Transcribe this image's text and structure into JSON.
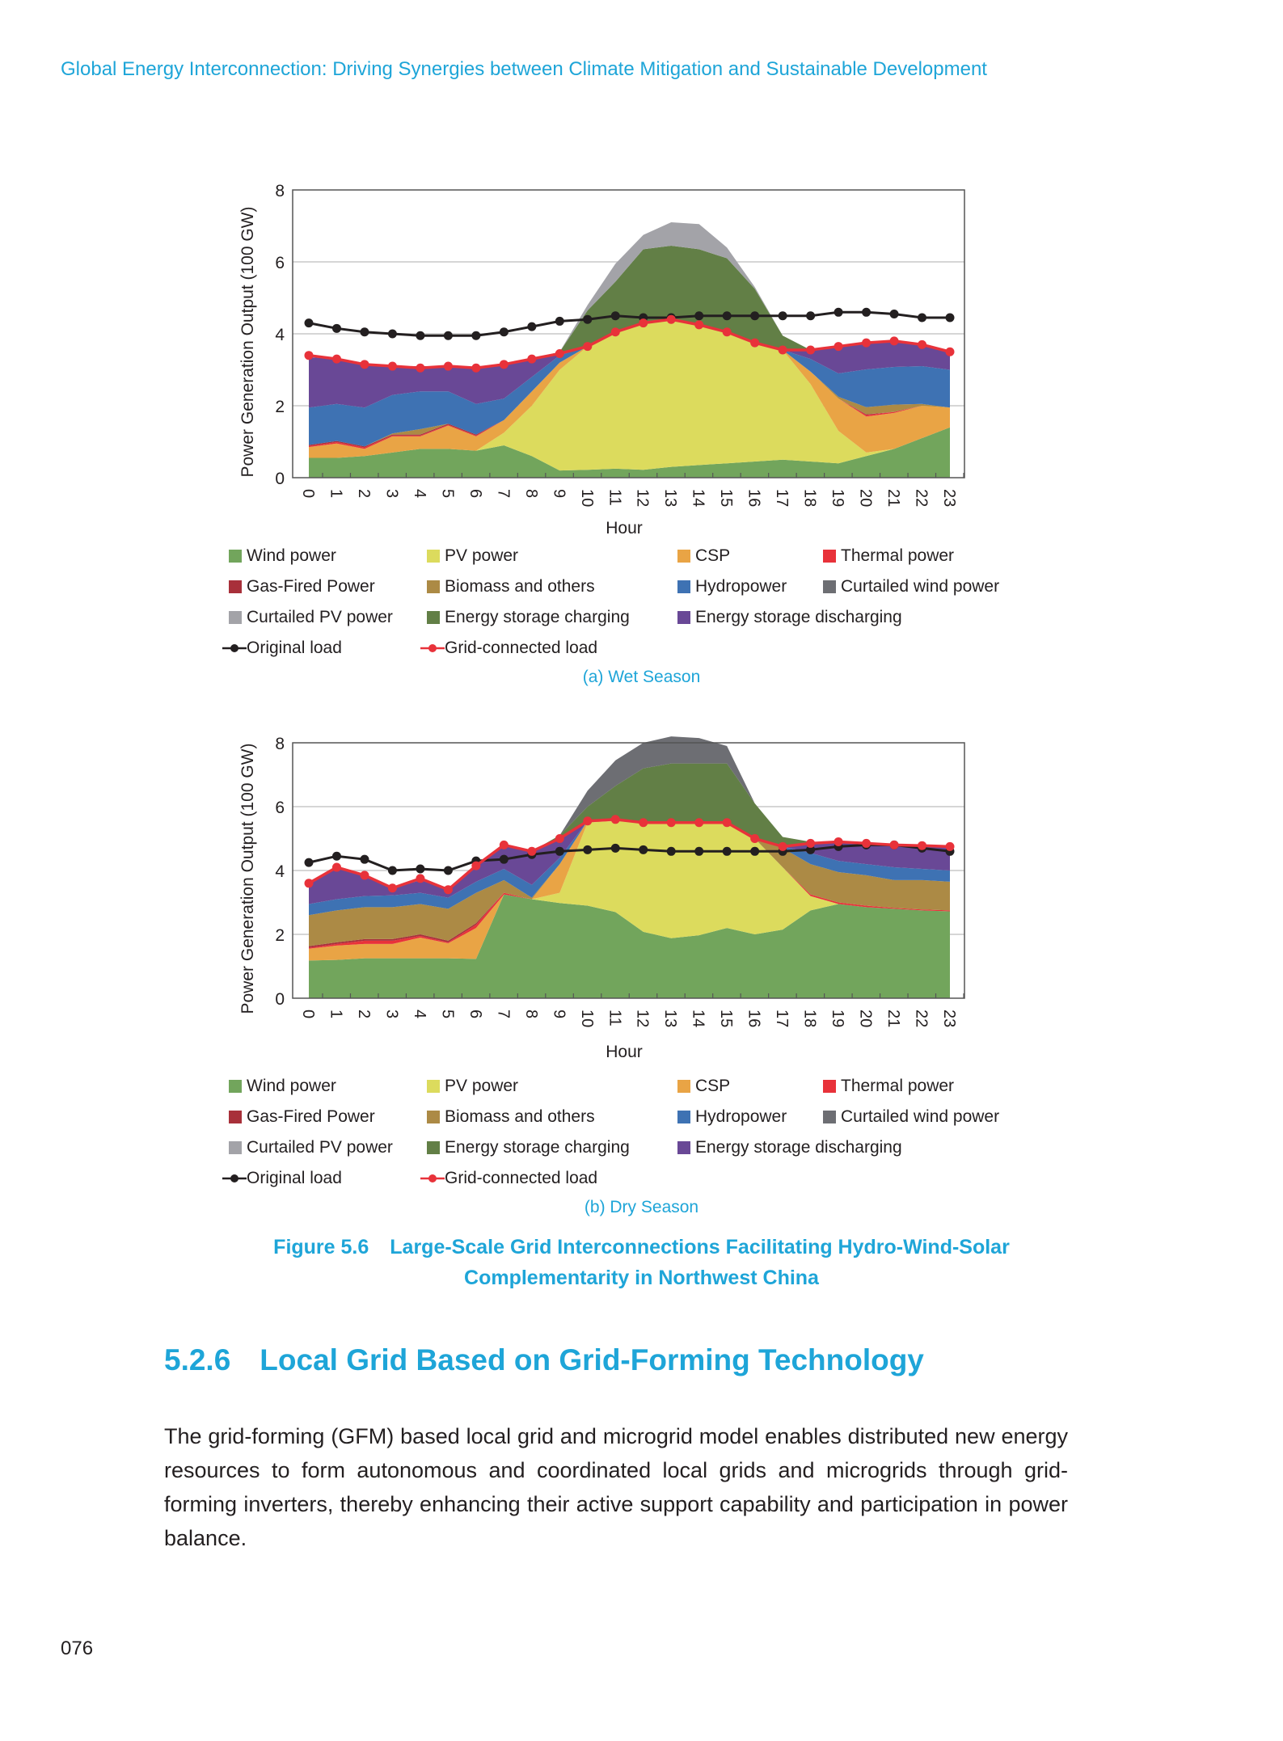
{
  "running_header": "Global Energy Interconnection: Driving Synergies between Climate Mitigation and Sustainable Development",
  "legend": [
    {
      "label": "Wind power",
      "color": "#72a55c",
      "kind": "area"
    },
    {
      "label": "PV power",
      "color": "#dcdb5d",
      "kind": "area"
    },
    {
      "label": "CSP",
      "color": "#e9a445",
      "kind": "area"
    },
    {
      "label": "Thermal power",
      "color": "#e8323a",
      "kind": "area"
    },
    {
      "label": "Gas-Fired Power",
      "color": "#a8303a",
      "kind": "area"
    },
    {
      "label": "Biomass and others",
      "color": "#ac8a45",
      "kind": "area"
    },
    {
      "label": "Hydropower",
      "color": "#3e72b3",
      "kind": "area"
    },
    {
      "label": "Curtailed wind power",
      "color": "#6d6e73",
      "kind": "area"
    },
    {
      "label": "Curtailed PV power",
      "color": "#a3a3a8",
      "kind": "area"
    },
    {
      "label": "Energy storage charging",
      "color": "#627f46",
      "kind": "area"
    },
    {
      "label": "Energy storage discharging",
      "color": "#694896",
      "kind": "area"
    },
    {
      "label": "Original load",
      "color": "#231f20",
      "kind": "line"
    },
    {
      "label": "Grid-connected load",
      "color": "#e8323a",
      "kind": "line"
    }
  ],
  "chart_data": [
    {
      "type": "area",
      "title": "(a) Wet Season",
      "xlabel": "Hour",
      "ylabel": "Power Generation Output (100 GW)",
      "x": [
        0,
        1,
        2,
        3,
        4,
        5,
        6,
        7,
        8,
        9,
        10,
        11,
        12,
        13,
        14,
        15,
        16,
        17,
        18,
        19,
        20,
        21,
        22,
        23
      ],
      "ylim": [
        0,
        8
      ],
      "yticks": [
        0,
        2,
        4,
        6,
        8
      ],
      "grid": true,
      "legend_position": "bottom",
      "stacked_series": [
        {
          "name": "Wind power",
          "values": [
            0.55,
            0.55,
            0.6,
            0.7,
            0.8,
            0.8,
            0.75,
            0.9,
            0.6,
            0.2,
            0.22,
            0.25,
            0.22,
            0.3,
            0.35,
            0.4,
            0.45,
            0.5,
            0.45,
            0.4,
            0.6,
            0.8,
            1.1,
            1.4
          ]
        },
        {
          "name": "PV power",
          "values": [
            0,
            0,
            0,
            0,
            0,
            0,
            0,
            0.35,
            1.4,
            2.8,
            3.43,
            3.8,
            4.08,
            4.1,
            3.9,
            3.65,
            3.3,
            3.05,
            2.15,
            0.9,
            0.1,
            0,
            0,
            0
          ]
        },
        {
          "name": "CSP",
          "values": [
            0.3,
            0.4,
            0.2,
            0.45,
            0.35,
            0.65,
            0.4,
            0.35,
            0.4,
            0.2,
            0,
            0,
            0,
            0,
            0,
            0,
            0,
            0,
            0.35,
            0.9,
            1.0,
            1.0,
            0.9,
            0.55
          ]
        },
        {
          "name": "Thermal power",
          "values": [
            0.03,
            0.04,
            0.04,
            0.02,
            0.02,
            0.02,
            0.02,
            0,
            0,
            0,
            0,
            0,
            0,
            0,
            0,
            0,
            0,
            0,
            0,
            0,
            0.04,
            0.03,
            0,
            0
          ]
        },
        {
          "name": "Gas-Fired Power",
          "values": [
            0.03,
            0.03,
            0.03,
            0.03,
            0.03,
            0.03,
            0.03,
            0,
            0,
            0,
            0,
            0,
            0,
            0,
            0,
            0,
            0,
            0,
            0,
            0,
            0.02,
            0,
            0,
            0
          ]
        },
        {
          "name": "Biomass and others",
          "values": [
            0,
            0,
            0,
            0.03,
            0.15,
            0,
            0,
            0,
            0,
            0,
            0,
            0,
            0,
            0,
            0,
            0,
            0,
            0,
            0,
            0.05,
            0.2,
            0.2,
            0.05,
            0
          ]
        },
        {
          "name": "Hydropower",
          "values": [
            1.04,
            1.03,
            1.08,
            1.07,
            1.05,
            0.9,
            0.85,
            0.6,
            0.4,
            0.2,
            0,
            0,
            0,
            0,
            0,
            0,
            0,
            0,
            0.35,
            0.65,
            1.05,
            1.05,
            1.05,
            1.05
          ]
        },
        {
          "name": "Energy storage discharging",
          "values": [
            1.4,
            1.25,
            1.2,
            0.8,
            0.7,
            0.7,
            1.0,
            0.95,
            0.5,
            0.05,
            0,
            0,
            0,
            0,
            0,
            0,
            0,
            0,
            0.25,
            0.75,
            0.75,
            0.72,
            0.6,
            0.5
          ]
        },
        {
          "name": "Energy storage charging",
          "values": [
            0,
            0,
            0,
            0,
            0,
            0,
            0,
            0,
            0,
            0.05,
            1.0,
            1.4,
            2.05,
            2.05,
            2.1,
            2.05,
            1.5,
            0.4,
            0,
            0,
            0,
            0,
            0,
            0
          ]
        },
        {
          "name": "Curtailed wind power",
          "values": [
            0,
            0,
            0,
            0,
            0,
            0,
            0,
            0,
            0,
            0,
            0,
            0,
            0,
            0,
            0,
            0,
            0,
            0,
            0,
            0,
            0,
            0,
            0,
            0
          ]
        },
        {
          "name": "Curtailed PV power",
          "values": [
            0,
            0,
            0,
            0,
            0,
            0,
            0,
            0,
            0,
            0,
            0.15,
            0.5,
            0.4,
            0.65,
            0.7,
            0.3,
            0.05,
            0,
            0,
            0,
            0,
            0,
            0,
            0
          ]
        }
      ],
      "line_series": [
        {
          "name": "Original load",
          "values": [
            4.3,
            4.15,
            4.05,
            4.0,
            3.95,
            3.95,
            3.95,
            4.05,
            4.2,
            4.35,
            4.4,
            4.5,
            4.45,
            4.45,
            4.5,
            4.5,
            4.5,
            4.5,
            4.5,
            4.6,
            4.6,
            4.55,
            4.45,
            4.45
          ]
        },
        {
          "name": "Grid-connected load",
          "values": [
            3.4,
            3.3,
            3.15,
            3.1,
            3.05,
            3.1,
            3.05,
            3.15,
            3.3,
            3.45,
            3.65,
            4.05,
            4.3,
            4.4,
            4.25,
            4.05,
            3.75,
            3.55,
            3.55,
            3.65,
            3.75,
            3.8,
            3.7,
            3.5
          ]
        }
      ]
    },
    {
      "type": "area",
      "title": "(b) Dry Season",
      "xlabel": "Hour",
      "ylabel": "Power Generation Output (100 GW)",
      "x": [
        0,
        1,
        2,
        3,
        4,
        5,
        6,
        7,
        8,
        9,
        10,
        11,
        12,
        13,
        14,
        15,
        16,
        17,
        18,
        19,
        20,
        21,
        22,
        23
      ],
      "ylim": [
        0,
        8
      ],
      "yticks": [
        0,
        2,
        4,
        6,
        8
      ],
      "grid": true,
      "legend_position": "bottom",
      "stacked_series": [
        {
          "name": "Wind power",
          "values": [
            1.18,
            1.2,
            1.25,
            1.25,
            1.25,
            1.25,
            1.23,
            3.25,
            3.1,
            2.98,
            2.9,
            2.7,
            2.08,
            1.88,
            1.97,
            2.2,
            2.0,
            2.15,
            2.75,
            2.95,
            2.85,
            2.8,
            2.75,
            2.72
          ]
        },
        {
          "name": "PV power",
          "values": [
            0,
            0,
            0,
            0,
            0,
            0,
            0,
            0,
            0,
            0.32,
            2.6,
            2.85,
            3.42,
            3.62,
            3.53,
            3.3,
            3.0,
            1.95,
            0.45,
            0,
            0,
            0,
            0,
            0
          ]
        },
        {
          "name": "CSP",
          "values": [
            0.37,
            0.45,
            0.45,
            0.45,
            0.65,
            0.47,
            0.97,
            0,
            0,
            0.9,
            0.05,
            0,
            0,
            0,
            0,
            0,
            0,
            0,
            0,
            0,
            0,
            0,
            0,
            0
          ]
        },
        {
          "name": "Thermal power",
          "values": [
            0.03,
            0.05,
            0.1,
            0.1,
            0.05,
            0.03,
            0.1,
            0.05,
            0,
            0,
            0,
            0,
            0,
            0,
            0,
            0,
            0,
            0,
            0.05,
            0.05,
            0.05,
            0.03,
            0.03,
            0.03
          ]
        },
        {
          "name": "Gas-Fired Power",
          "values": [
            0.05,
            0.05,
            0.05,
            0.05,
            0.05,
            0.05,
            0.05,
            0,
            0,
            0,
            0,
            0,
            0,
            0,
            0,
            0,
            0,
            0,
            0,
            0,
            0,
            0,
            0,
            0
          ]
        },
        {
          "name": "Biomass and others",
          "values": [
            0.97,
            1.0,
            1.0,
            1.0,
            0.95,
            1.0,
            0.95,
            0.4,
            0.05,
            0,
            0,
            0,
            0,
            0,
            0,
            0,
            0,
            0.6,
            0.95,
            0.95,
            0.95,
            0.87,
            0.92,
            0.9
          ]
        },
        {
          "name": "Hydropower",
          "values": [
            0.35,
            0.35,
            0.35,
            0.37,
            0.35,
            0.35,
            0.35,
            0.35,
            0.4,
            0.2,
            0,
            0,
            0,
            0,
            0,
            0,
            0,
            0.05,
            0.35,
            0.35,
            0.35,
            0.4,
            0.35,
            0.35
          ]
        },
        {
          "name": "Energy storage discharging",
          "values": [
            0.65,
            1.0,
            0.65,
            0.2,
            0.4,
            0.25,
            0.5,
            0.75,
            1.05,
            0.6,
            0,
            0,
            0,
            0,
            0,
            0,
            0,
            0,
            0.35,
            0.6,
            0.65,
            0.7,
            0.73,
            0.75
          ]
        },
        {
          "name": "Energy storage charging",
          "values": [
            0,
            0,
            0,
            0,
            0,
            0,
            0,
            0,
            0,
            0.1,
            0.45,
            1.1,
            1.7,
            1.85,
            1.85,
            1.85,
            1.1,
            0.3,
            0,
            0,
            0,
            0,
            0,
            0
          ]
        },
        {
          "name": "Curtailed wind power",
          "values": [
            0,
            0,
            0,
            0,
            0,
            0,
            0,
            0,
            0,
            0,
            0.5,
            0.8,
            0.8,
            0.85,
            0.8,
            0.55,
            0,
            0,
            0,
            0,
            0,
            0,
            0,
            0
          ]
        },
        {
          "name": "Curtailed PV power",
          "values": [
            0,
            0,
            0,
            0,
            0,
            0,
            0,
            0,
            0,
            0,
            0,
            0,
            0,
            0,
            0,
            0,
            0,
            0,
            0,
            0,
            0,
            0,
            0,
            0
          ]
        }
      ],
      "line_series": [
        {
          "name": "Original load",
          "values": [
            4.25,
            4.45,
            4.35,
            4.0,
            4.05,
            4.0,
            4.3,
            4.35,
            4.5,
            4.6,
            4.65,
            4.7,
            4.65,
            4.6,
            4.6,
            4.6,
            4.6,
            4.6,
            4.65,
            4.75,
            4.8,
            4.8,
            4.7,
            4.6
          ]
        },
        {
          "name": "Grid-connected load",
          "values": [
            3.6,
            4.1,
            3.85,
            3.45,
            3.75,
            3.4,
            4.15,
            4.8,
            4.6,
            5.0,
            5.55,
            5.6,
            5.5,
            5.5,
            5.5,
            5.5,
            5.0,
            4.75,
            4.85,
            4.9,
            4.85,
            4.8,
            4.78,
            4.75
          ]
        }
      ]
    }
  ],
  "figure_caption": {
    "number": "Figure 5.6",
    "line1": "Large-Scale Grid Interconnections Facilitating Hydro-Wind-Solar",
    "line2": "Complementarity in Northwest China"
  },
  "section": {
    "number": "5.2.6",
    "title": "Local Grid Based on Grid-Forming Technology"
  },
  "paragraph": "The grid-forming (GFM) based local grid and microgrid model enables distributed new energy resources to form autonomous and coordinated local grids and microgrids through grid-forming inverters, thereby enhancing their active support capability and participation in power balance.",
  "page_number": "076"
}
